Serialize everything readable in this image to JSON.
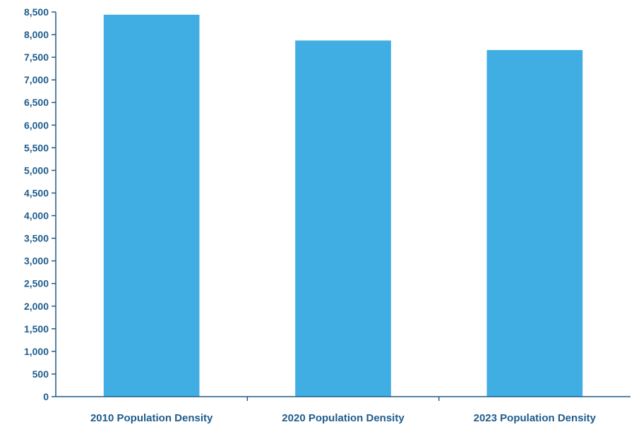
{
  "chart_data": {
    "type": "bar",
    "title": "",
    "xlabel": "",
    "ylabel": "",
    "categories": [
      "2010 Population Density",
      "2020 Population Density",
      "2023 Population Density"
    ],
    "values": [
      8440,
      7870,
      7660
    ],
    "ylim": [
      0,
      8500
    ],
    "y_ticks": [
      0,
      500,
      1000,
      1500,
      2000,
      2500,
      3000,
      3500,
      4000,
      4500,
      5000,
      5500,
      6000,
      6500,
      7000,
      7500,
      8000,
      8500
    ],
    "y_tick_labels": [
      "0",
      "500",
      "1,000",
      "1,500",
      "2,000",
      "2,500",
      "3,000",
      "3,500",
      "4,000",
      "4,500",
      "5,000",
      "5,500",
      "6,000",
      "6,500",
      "7,000",
      "7,500",
      "8,000",
      "8,500"
    ],
    "grid": false,
    "legend": "none",
    "colors": {
      "bar": "#41aee3",
      "axis": "#1f5c8c",
      "text": "#1f5c8c"
    }
  }
}
